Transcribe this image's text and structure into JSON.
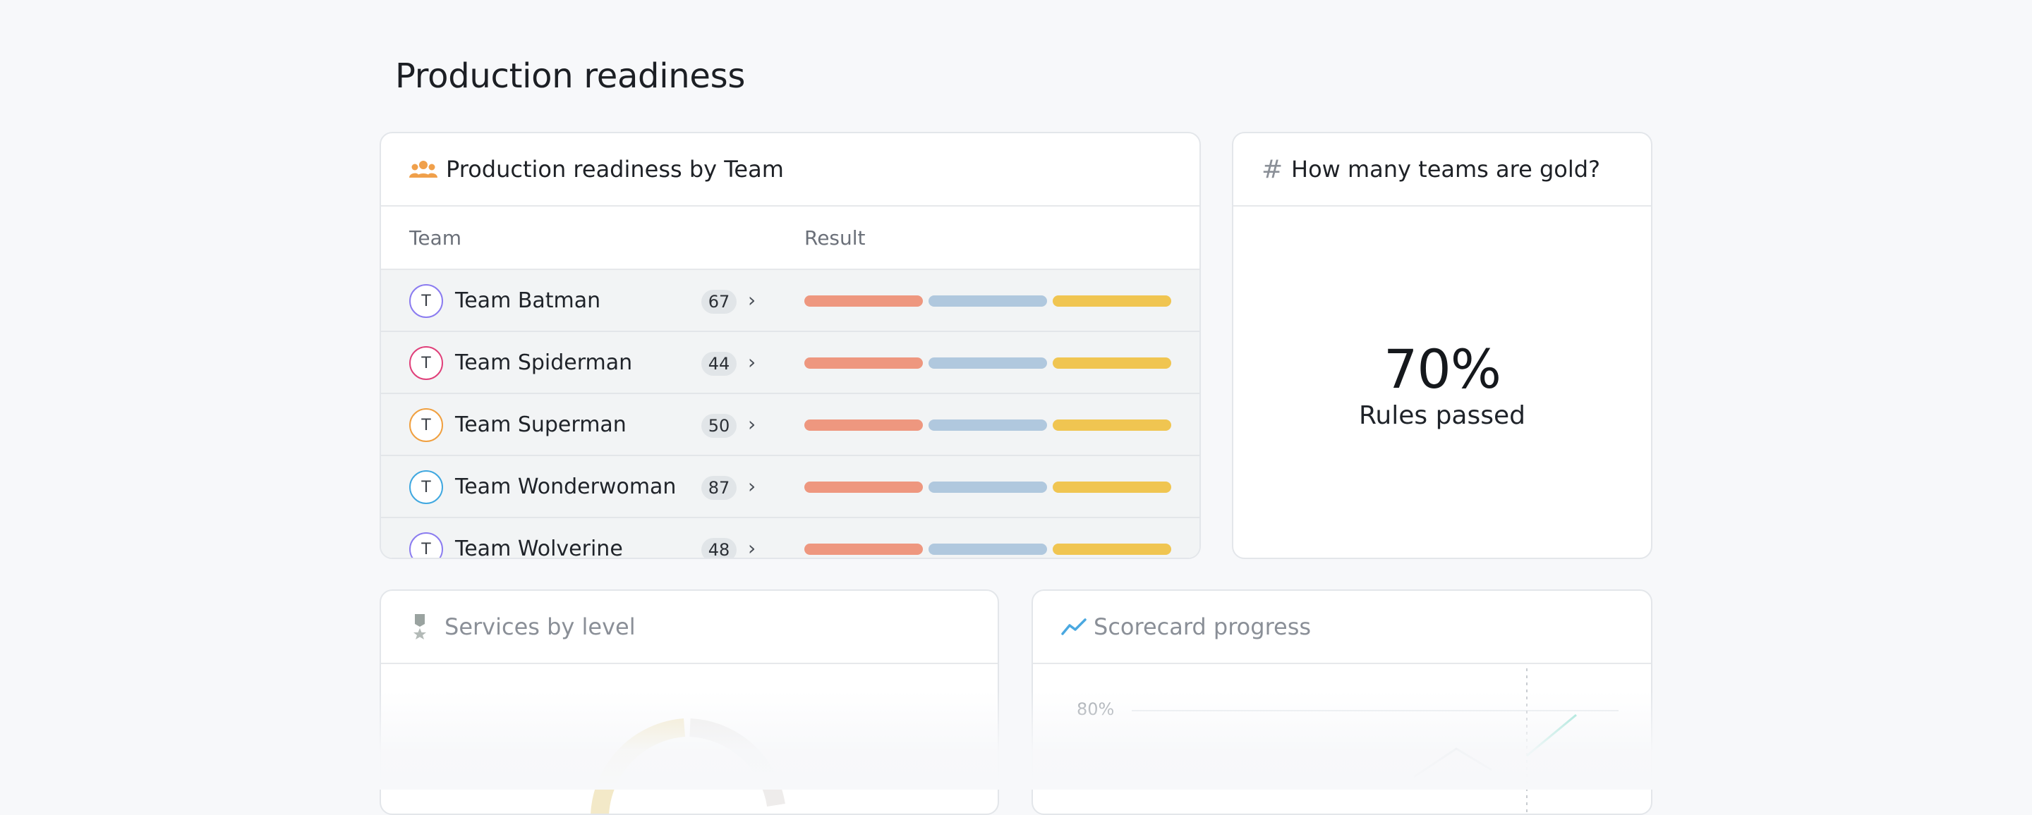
{
  "page_title": "Production readiness",
  "team_card": {
    "title": "Production readiness by Team",
    "icon": "users-icon",
    "columns": {
      "team": "Team",
      "result": "Result"
    },
    "rows": [
      {
        "avatar": "T",
        "name": "Team Batman",
        "count": "67",
        "ring": "#8b7cf0"
      },
      {
        "avatar": "T",
        "name": "Team Spiderman",
        "count": "44",
        "ring": "#e0407a"
      },
      {
        "avatar": "T",
        "name": "Team Superman",
        "count": "50",
        "ring": "#f0a040"
      },
      {
        "avatar": "T",
        "name": "Team Wonderwoman",
        "count": "87",
        "ring": "#40a8e0"
      },
      {
        "avatar": "T",
        "name": "Team Wolverine",
        "count": "48",
        "ring": "#8b7cf0"
      }
    ]
  },
  "gold_card": {
    "title": "How many teams are gold?",
    "icon": "hash-icon",
    "value": "70%",
    "label": "Rules passed"
  },
  "services_card": {
    "title": "Services by level",
    "icon": "medal-icon"
  },
  "scorecard_card": {
    "title": "Scorecard progress",
    "icon": "trend-icon",
    "y_tick": "80%"
  },
  "colors": {
    "orange_icon": "#f0a04b",
    "bar_red": "#ee977f",
    "bar_blue": "#b0c8de",
    "bar_yellow": "#f0c551"
  }
}
